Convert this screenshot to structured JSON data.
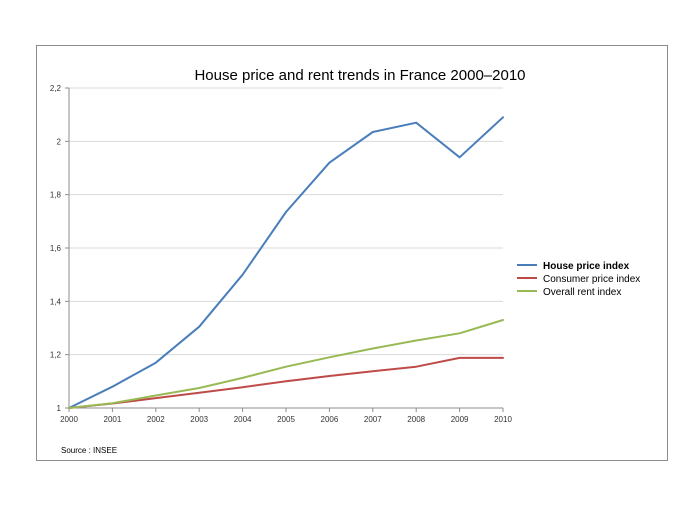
{
  "chart_data": {
    "type": "line",
    "title": "House price and rent trends in France 2000–2010",
    "xlabel": "",
    "ylabel": "",
    "x": [
      "2000",
      "2001",
      "2002",
      "2003",
      "2004",
      "2005",
      "2006",
      "2007",
      "2008",
      "2009",
      "2010"
    ],
    "ylim": [
      1,
      2.2
    ],
    "yticks": [
      1,
      1.2,
      1.4,
      1.6,
      1.8,
      2,
      2.2
    ],
    "ytick_labels": [
      "1",
      "1,2",
      "1,4",
      "1,6",
      "1,8",
      "2",
      "2,2"
    ],
    "grid": true,
    "legend_position": "right",
    "series": [
      {
        "name": "House price index",
        "color": "#4a7ebb",
        "bold_legend": true,
        "values": [
          1.0,
          1.08,
          1.17,
          1.305,
          1.5,
          1.735,
          1.92,
          2.035,
          2.07,
          1.94,
          2.09
        ]
      },
      {
        "name": "Consumer price index",
        "color": "#be4b48",
        "bold_legend": false,
        "values": [
          1.0,
          1.017,
          1.037,
          1.057,
          1.078,
          1.1,
          1.12,
          1.138,
          1.155,
          1.188,
          1.188
        ]
      },
      {
        "name": "Overall rent index",
        "color": "#98b954",
        "bold_legend": false,
        "values": [
          1.0,
          1.018,
          1.047,
          1.075,
          1.113,
          1.155,
          1.19,
          1.223,
          1.253,
          1.28,
          1.33
        ]
      }
    ],
    "source": "Source : INSEE"
  }
}
